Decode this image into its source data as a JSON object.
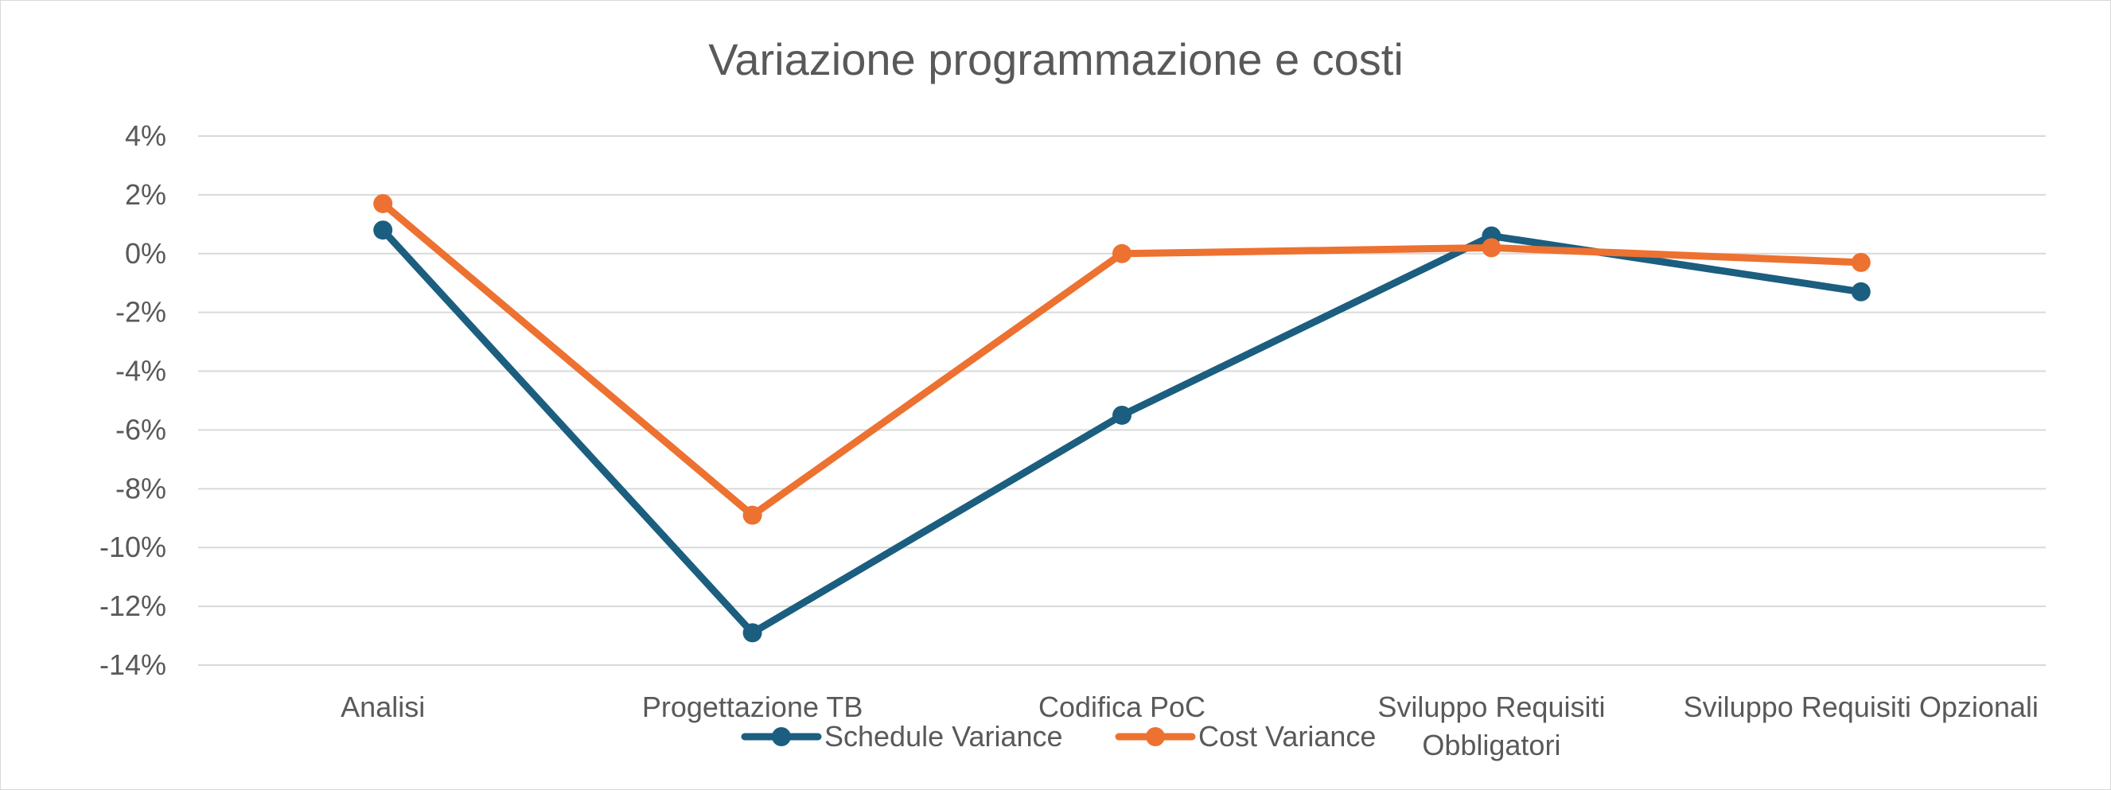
{
  "chart_data": {
    "type": "line",
    "title": "Variazione programmazione e costi",
    "xlabel": "",
    "ylabel": "",
    "categories": [
      [
        "Analisi"
      ],
      [
        "Progettazione TB"
      ],
      [
        "Codifica PoC"
      ],
      [
        "Sviluppo Requisiti",
        "Obbligatori"
      ],
      [
        "Sviluppo Requisiti Opzionali"
      ]
    ],
    "y_ticks": [
      "4%",
      "2%",
      "0%",
      "-2%",
      "-4%",
      "-6%",
      "-8%",
      "-10%",
      "-12%",
      "-14%"
    ],
    "y_tick_values": [
      4,
      2,
      0,
      -2,
      -4,
      -6,
      -8,
      -10,
      -12,
      -14
    ],
    "ylim": [
      -14,
      4
    ],
    "grid": true,
    "legend_position": "bottom",
    "series": [
      {
        "name": "Schedule Variance",
        "color": "#1b5e7f",
        "values": [
          0.8,
          -12.9,
          -5.5,
          0.6,
          -1.3
        ]
      },
      {
        "name": "Cost Variance",
        "color": "#ed7130",
        "values": [
          1.7,
          -8.9,
          0.0,
          0.2,
          -0.3
        ]
      }
    ]
  }
}
